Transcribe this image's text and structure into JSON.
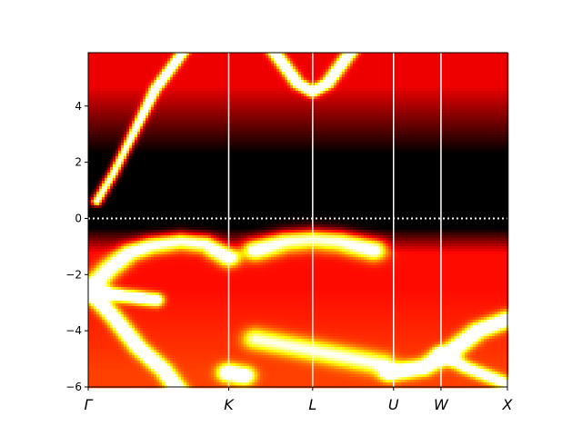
{
  "chart_data": {
    "type": "heatmap",
    "title": "",
    "xlabel": "",
    "ylabel": "",
    "colormap": "hot",
    "ylim": [
      -6,
      5.9
    ],
    "y_ticks": [
      {
        "value": 4,
        "label": "4"
      },
      {
        "value": 2,
        "label": "2"
      },
      {
        "value": 0,
        "label": "0"
      },
      {
        "value": -2,
        "label": "−2"
      },
      {
        "value": -4,
        "label": "−4"
      },
      {
        "value": -6,
        "label": "−6"
      }
    ],
    "x_range": [
      0,
      1
    ],
    "high_symmetry_points": [
      {
        "label": "Γ",
        "position": 0.0
      },
      {
        "label": "K",
        "position": 0.3352
      },
      {
        "label": "L",
        "position": 0.5354
      },
      {
        "label": "U",
        "position": 0.7283
      },
      {
        "label": "W",
        "position": 0.8415
      },
      {
        "label": "X",
        "position": 1.0
      }
    ],
    "fermi_level": 0,
    "vertical_line_color": "#ffffff",
    "bands": [
      {
        "points": [
          [
            0.02,
            0.6
          ],
          [
            0.06,
            1.6
          ],
          [
            0.1,
            2.8
          ],
          [
            0.16,
            4.6
          ],
          [
            0.24,
            6.2
          ]
        ],
        "weight": 1.0,
        "width": 0.05
      },
      {
        "points": [
          [
            0.0,
            -2.55
          ],
          [
            0.08,
            -2.75
          ],
          [
            0.16,
            -2.9
          ]
        ],
        "weight": 1.0,
        "width": 0.07
      },
      {
        "points": [
          [
            0.0,
            -2.55
          ],
          [
            0.05,
            -1.8
          ],
          [
            0.1,
            -1.2
          ],
          [
            0.15,
            -0.95
          ],
          [
            0.22,
            -0.8
          ],
          [
            0.28,
            -0.9
          ],
          [
            0.335,
            -1.4
          ]
        ],
        "weight": 0.8,
        "width": 0.1
      },
      {
        "points": [
          [
            0.0,
            -2.55
          ],
          [
            0.06,
            -3.5
          ],
          [
            0.12,
            -4.6
          ],
          [
            0.18,
            -5.4
          ],
          [
            0.22,
            -6.2
          ]
        ],
        "weight": 0.9,
        "width": 0.08
      },
      {
        "points": [
          [
            0.335,
            -5.5
          ],
          [
            0.37,
            -5.6
          ]
        ],
        "weight": 0.9,
        "width": 0.1
      },
      {
        "points": [
          [
            0.4,
            -1.1
          ],
          [
            0.47,
            -0.8
          ],
          [
            0.535,
            -0.72
          ],
          [
            0.6,
            -0.8
          ],
          [
            0.68,
            -1.1
          ]
        ],
        "weight": 0.8,
        "width": 0.12
      },
      {
        "points": [
          [
            0.44,
            6.0
          ],
          [
            0.5,
            4.8
          ],
          [
            0.535,
            4.5
          ],
          [
            0.57,
            4.8
          ],
          [
            0.63,
            6.0
          ]
        ],
        "weight": 1.0,
        "width": 0.06
      },
      {
        "points": [
          [
            0.72,
            -5.5
          ],
          [
            0.8,
            -5.3
          ],
          [
            0.86,
            -4.8
          ],
          [
            0.93,
            -4.0
          ],
          [
            1.0,
            -3.6
          ]
        ],
        "weight": 0.9,
        "width": 0.09
      },
      {
        "points": [
          [
            0.84,
            -4.8
          ],
          [
            0.9,
            -5.3
          ],
          [
            0.95,
            -5.6
          ],
          [
            1.0,
            -5.9
          ]
        ],
        "weight": 0.7,
        "width": 0.07
      },
      {
        "points": [
          [
            0.4,
            -4.3
          ],
          [
            0.5,
            -4.6
          ],
          [
            0.6,
            -4.9
          ],
          [
            0.7,
            -5.2
          ]
        ],
        "weight": 0.55,
        "width": 0.12
      }
    ]
  }
}
